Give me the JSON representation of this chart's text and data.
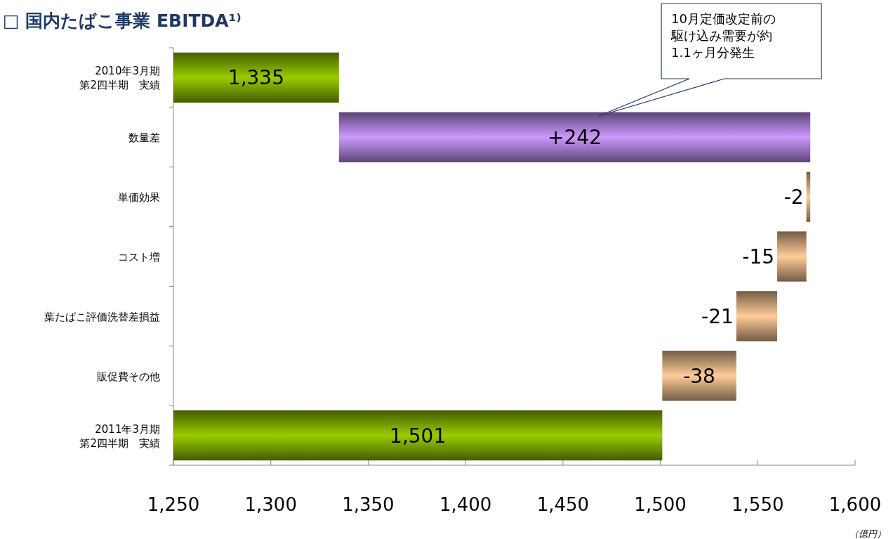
{
  "chart_data": {
    "type": "bar",
    "orientation": "horizontal",
    "title": "□ 国内たばこ事業 EBITDA¹⁾",
    "categories": [
      "2010年3月期第2四半期　実績",
      "数量差",
      "単価効果",
      "コスト増",
      "葉たばこ評価洗替差損益",
      "販促費その他",
      "2011年3月期第2四半期　実績"
    ],
    "values": [
      1335,
      242,
      -2,
      -15,
      -21,
      -38,
      1501
    ],
    "base": [
      null,
      1335,
      1577,
      1575,
      1560,
      1539,
      null
    ],
    "colors": [
      "#99cc00",
      "#cc99ff",
      "#ffcc99",
      "#ffcc99",
      "#ffcc99",
      "#ffcc99",
      "#99cc00"
    ],
    "value_labels": [
      "1,335",
      "+242",
      "-2",
      "-15",
      "-21",
      "-38",
      "1,501"
    ],
    "xlim": [
      1250,
      1600
    ],
    "xticks": [
      {
        "value": 1250,
        "label": "1,250"
      },
      {
        "value": 1300,
        "label": "1,300"
      },
      {
        "value": 1350,
        "label": "1,350"
      },
      {
        "value": 1400,
        "label": "1,400"
      },
      {
        "value": 1450,
        "label": "1,450"
      },
      {
        "value": 1500,
        "label": "1,500"
      },
      {
        "value": 1550,
        "label": "1,550"
      },
      {
        "value": 1600,
        "label": "1,600"
      }
    ],
    "annotations": [
      "10月定価改定前の駆け込み需要が約1.1ヶ月分発生",
      "（億円）"
    ]
  }
}
